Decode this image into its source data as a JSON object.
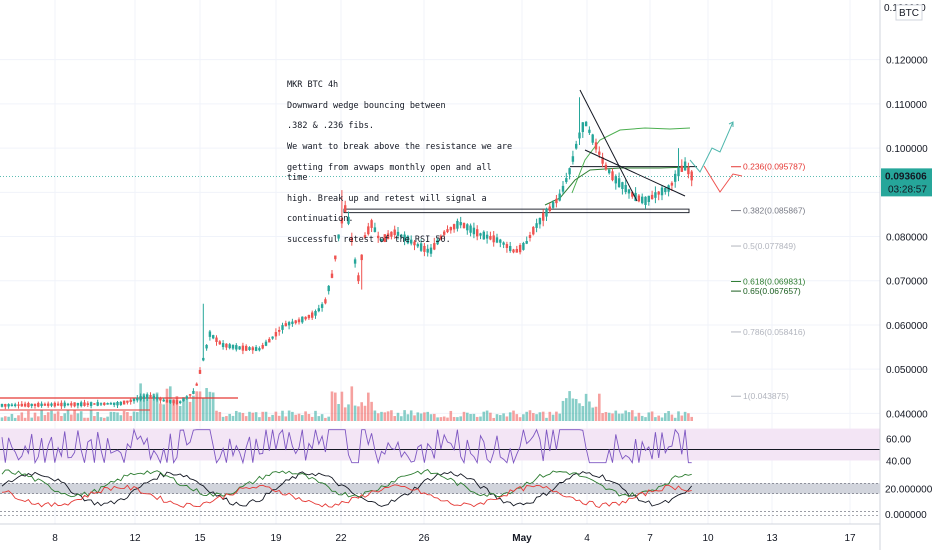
{
  "chart_data": {
    "type": "candlestick",
    "symbol": "MKR BTC 4h",
    "quote_currency": "BTC",
    "annotation_lines": [
      "MKR BTC 4h",
      "Downward wedge bouncing between",
      ".382 & .236 fibs.",
      "We want to break above the resistance we are",
      "getting from avwaps monthly open and all time",
      "high.   Break up and retest will signal a",
      "continuation.",
      "successful retest of the RSI 50."
    ],
    "y_axis_ticks": [
      "0.120000",
      "0.110000",
      "0.100000",
      "0.080000",
      "0.070000",
      "0.060000",
      "0.050000",
      "0.040000"
    ],
    "y_axis_top_partial": "0.130000",
    "y_range": [
      0.0385,
      0.1335
    ],
    "x_ticks": [
      "8",
      "12",
      "15",
      "19",
      "22",
      "26",
      "May",
      "4",
      "7",
      "10",
      "13",
      "17"
    ],
    "current_price": "0.093606",
    "countdown": "03:28:57",
    "fib_levels": [
      {
        "ratio": "0.236",
        "value": 0.095787,
        "label": "0.236(0.095787)",
        "color": "#e53935"
      },
      {
        "ratio": "0.382",
        "value": 0.085867,
        "label": "0.382(0.085867)",
        "color": "#787b86"
      },
      {
        "ratio": "0.5",
        "value": 0.077849,
        "label": "0.5(0.077849)",
        "color": "#b2b5be"
      },
      {
        "ratio": "0.618",
        "value": 0.069831,
        "label": "0.618(0.069831)",
        "color": "#2e7d32"
      },
      {
        "ratio": "0.65",
        "value": 0.067657,
        "label": "0.65(0.067657)",
        "color": "#1b5e20"
      },
      {
        "ratio": "0.786",
        "value": 0.058416,
        "label": "0.786(0.058416)",
        "color": "#b2b5be"
      },
      {
        "ratio": "1",
        "value": 0.043875,
        "label": "1(0.043875)",
        "color": "#b2b5be"
      }
    ],
    "rsi_panel": {
      "ticks": [
        "60.00",
        "40.00"
      ],
      "range": [
        35,
        75
      ],
      "band": [
        40,
        60
      ]
    },
    "osc_panel": {
      "ticks": [
        "20.000000",
        "0.000000"
      ],
      "range": [
        -3,
        36
      ]
    },
    "colors": {
      "up": "#26a69a",
      "down": "#ef5350",
      "rsi": "#7e57c2",
      "rsi_band": "#f3e5f5",
      "price_line": "#26a69a"
    }
  }
}
